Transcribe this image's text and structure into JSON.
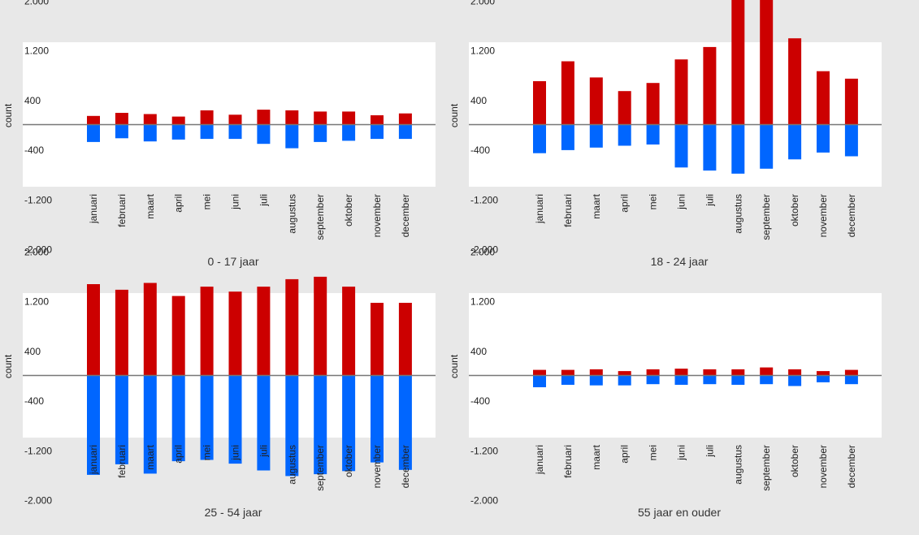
{
  "chart_data": [
    {
      "type": "bar",
      "title": "0 - 17 jaar",
      "xlabel": "",
      "ylabel": "count",
      "ylim": [
        -2200,
        2200
      ],
      "yticks": [
        "2.000",
        "1.200",
        "400",
        "-400",
        "-1.200",
        "-2.000"
      ],
      "ytick_values": [
        2000,
        1200,
        400,
        -400,
        -1200,
        -2000
      ],
      "categories": [
        "januari",
        "februari",
        "maart",
        "april",
        "mei",
        "juni",
        "juli",
        "augustus",
        "september",
        "oktober",
        "november",
        "december"
      ],
      "grid": false,
      "series": [
        {
          "color": "#cc0000",
          "values": [
            140,
            190,
            170,
            130,
            230,
            160,
            240,
            230,
            210,
            210,
            150,
            180
          ]
        },
        {
          "color": "#0066ff",
          "values": [
            -280,
            -220,
            -270,
            -240,
            -230,
            -230,
            -310,
            -380,
            -280,
            -260,
            -230,
            -230
          ]
        }
      ]
    },
    {
      "type": "bar",
      "title": "18 - 24 jaar",
      "xlabel": "",
      "ylabel": "count",
      "ylim": [
        -2200,
        2200
      ],
      "yticks": [
        "2.000",
        "1.200",
        "400",
        "-400",
        "-1.200",
        "-2.000"
      ],
      "ytick_values": [
        2000,
        1200,
        400,
        -400,
        -1200,
        -2000
      ],
      "categories": [
        "januari",
        "februari",
        "maart",
        "april",
        "mei",
        "juni",
        "juli",
        "augustus",
        "september",
        "oktober",
        "november",
        "december"
      ],
      "grid": false,
      "series": [
        {
          "color": "#cc0000",
          "values": [
            700,
            1020,
            760,
            540,
            670,
            1050,
            1250,
            2160,
            2240,
            1390,
            860,
            740
          ]
        },
        {
          "color": "#0066ff",
          "values": [
            -460,
            -410,
            -370,
            -340,
            -320,
            -690,
            -740,
            -790,
            -710,
            -560,
            -450,
            -510
          ]
        }
      ]
    },
    {
      "type": "bar",
      "title": "25 - 54 jaar",
      "xlabel": "",
      "ylabel": "count",
      "ylim": [
        -2200,
        2200
      ],
      "yticks": [
        "2.000",
        "1.200",
        "400",
        "-400",
        "-1.200",
        "-2.000"
      ],
      "ytick_values": [
        2000,
        1200,
        400,
        -400,
        -1200,
        -2000
      ],
      "categories": [
        "januari",
        "februari",
        "maart",
        "april",
        "mei",
        "juni",
        "juli",
        "augustus",
        "september",
        "oktober",
        "november",
        "december"
      ],
      "grid": false,
      "series": [
        {
          "color": "#cc0000",
          "values": [
            1470,
            1380,
            1490,
            1280,
            1430,
            1350,
            1430,
            1550,
            1590,
            1430,
            1170,
            1170
          ]
        },
        {
          "color": "#0066ff",
          "values": [
            -1600,
            -1430,
            -1580,
            -1380,
            -1360,
            -1420,
            -1530,
            -1620,
            -1590,
            -1540,
            -1400,
            -1520
          ]
        }
      ]
    },
    {
      "type": "bar",
      "title": "55 jaar en ouder",
      "xlabel": "",
      "ylabel": "count",
      "ylim": [
        -2200,
        2200
      ],
      "yticks": [
        "2.000",
        "1.200",
        "400",
        "-400",
        "-1.200",
        "-2.000"
      ],
      "ytick_values": [
        2000,
        1200,
        400,
        -400,
        -1200,
        -2000
      ],
      "categories": [
        "januari",
        "februari",
        "maart",
        "april",
        "mei",
        "juni",
        "juli",
        "augustus",
        "september",
        "oktober",
        "november",
        "december"
      ],
      "grid": false,
      "series": [
        {
          "color": "#cc0000",
          "values": [
            90,
            90,
            100,
            70,
            100,
            110,
            100,
            100,
            130,
            100,
            70,
            90
          ]
        },
        {
          "color": "#0066ff",
          "values": [
            -190,
            -150,
            -160,
            -160,
            -140,
            -150,
            -140,
            -150,
            -140,
            -170,
            -110,
            -140
          ]
        }
      ]
    }
  ]
}
